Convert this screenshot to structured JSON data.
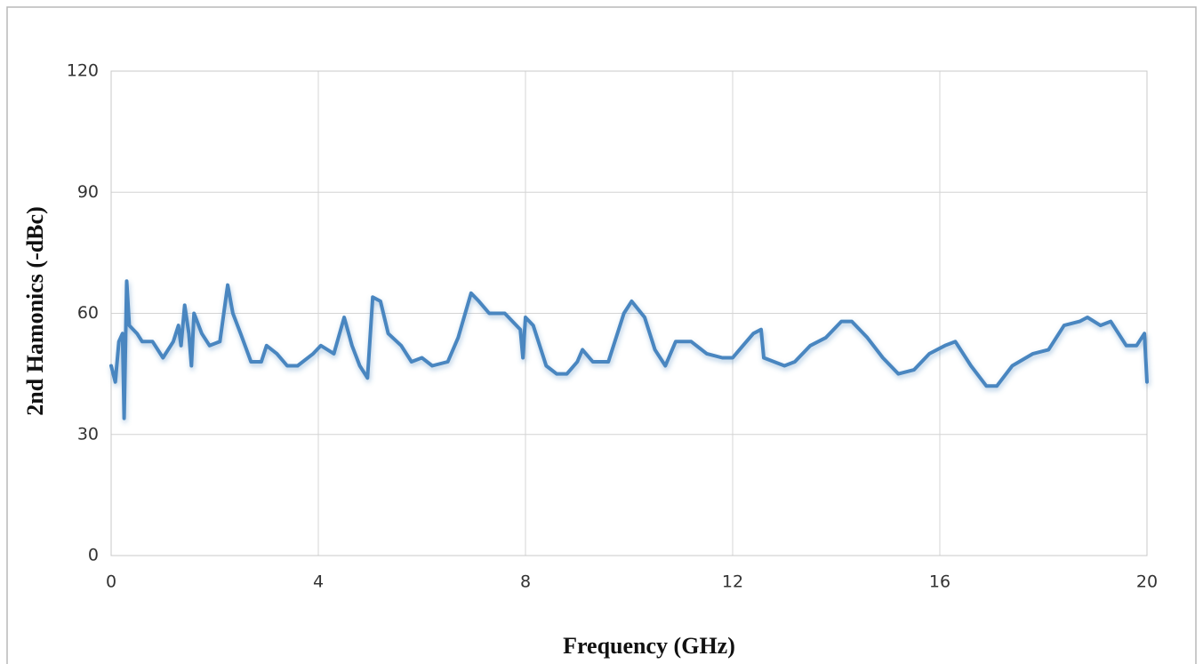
{
  "chart_data": {
    "type": "line",
    "xlabel": "Frequency (GHz)",
    "ylabel": "2nd Hamonics (-dBc)",
    "xlim": [
      0,
      20
    ],
    "xticks": [
      0,
      4,
      8,
      12,
      16,
      20
    ],
    "ylim": [
      0,
      120
    ],
    "yticks": [
      0,
      30,
      60,
      90,
      120
    ],
    "grid": true,
    "series": [
      {
        "color": "#4a86c0",
        "x": [
          0,
          0.08,
          0.15,
          0.22,
          0.25,
          0.3,
          0.35,
          0.5,
          0.6,
          0.8,
          1.0,
          1.2,
          1.3,
          1.35,
          1.42,
          1.5,
          1.55,
          1.6,
          1.75,
          1.9,
          2.1,
          2.25,
          2.35,
          2.5,
          2.7,
          2.9,
          3.0,
          3.2,
          3.4,
          3.6,
          3.9,
          4.05,
          4.3,
          4.5,
          4.65,
          4.8,
          4.95,
          5.05,
          5.2,
          5.35,
          5.6,
          5.8,
          6.0,
          6.2,
          6.5,
          6.7,
          6.95,
          7.1,
          7.3,
          7.6,
          7.9,
          7.95,
          8.0,
          8.15,
          8.4,
          8.6,
          8.8,
          9.0,
          9.1,
          9.3,
          9.6,
          9.9,
          10.05,
          10.3,
          10.5,
          10.7,
          10.9,
          11.2,
          11.5,
          11.8,
          12.0,
          12.2,
          12.4,
          12.55,
          12.6,
          12.8,
          13.0,
          13.2,
          13.5,
          13.8,
          14.1,
          14.3,
          14.6,
          14.9,
          15.2,
          15.5,
          15.8,
          16.1,
          16.3,
          16.6,
          16.9,
          17.1,
          17.4,
          17.8,
          18.1,
          18.4,
          18.7,
          18.85,
          19.1,
          19.3,
          19.6,
          19.8,
          19.95,
          20
        ],
        "values": [
          47,
          43,
          53,
          55,
          34,
          68,
          57,
          55,
          53,
          53,
          49,
          53,
          57,
          52,
          62,
          55,
          47,
          60,
          55,
          52,
          53,
          67,
          60,
          55,
          48,
          48,
          52,
          50,
          47,
          47,
          50,
          52,
          50,
          59,
          52,
          47,
          44,
          64,
          63,
          55,
          52,
          48,
          49,
          47,
          48,
          54,
          65,
          63,
          60,
          60,
          56,
          49,
          59,
          57,
          47,
          45,
          45,
          48,
          51,
          48,
          48,
          60,
          63,
          59,
          51,
          47,
          53,
          53,
          50,
          49,
          49,
          52,
          55,
          56,
          49,
          48,
          47,
          48,
          52,
          54,
          58,
          58,
          54,
          49,
          45,
          46,
          50,
          52,
          53,
          47,
          42,
          42,
          47,
          50,
          51,
          57,
          58,
          59,
          57,
          58,
          52,
          52,
          55,
          43
        ]
      }
    ]
  }
}
